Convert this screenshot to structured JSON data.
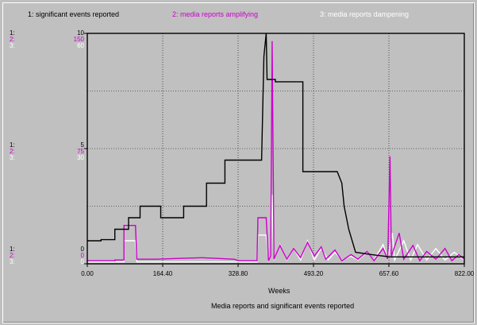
{
  "chart_data": {
    "type": "line",
    "title": "Media reports and significant events reported",
    "xlabel": "Weeks",
    "xlim": [
      0,
      822
    ],
    "x_ticks": [
      "0.00",
      "164.40",
      "328.80",
      "493.20",
      "657.60",
      "822.00"
    ],
    "grid": true,
    "legend_position": "top",
    "series": [
      {
        "name": "1: significant events reported",
        "legend": "1: significant events reported",
        "color": "#000000",
        "axis_prefix": "1:",
        "scale_top": "10",
        "scale_mid": "5",
        "scale_bottom": "0",
        "ylim": [
          0,
          10
        ],
        "points": [
          [
            0,
            1
          ],
          [
            30,
            1
          ],
          [
            30,
            1.05
          ],
          [
            60,
            1.05
          ],
          [
            60,
            1.5
          ],
          [
            90,
            1.5
          ],
          [
            90,
            2
          ],
          [
            115,
            2
          ],
          [
            115,
            2.5
          ],
          [
            160,
            2.5
          ],
          [
            160,
            2
          ],
          [
            210,
            2
          ],
          [
            210,
            2.5
          ],
          [
            260,
            2.5
          ],
          [
            260,
            3.5
          ],
          [
            300,
            3.5
          ],
          [
            300,
            4.5
          ],
          [
            380,
            4.5
          ],
          [
            385,
            9
          ],
          [
            390,
            10
          ],
          [
            392,
            8
          ],
          [
            410,
            8
          ],
          [
            410,
            7.9
          ],
          [
            470,
            7.9
          ],
          [
            470,
            4
          ],
          [
            545,
            4
          ],
          [
            555,
            3.5
          ],
          [
            560,
            2.5
          ],
          [
            570,
            1.5
          ],
          [
            585,
            0.5
          ],
          [
            620,
            0.4
          ],
          [
            660,
            0.3
          ],
          [
            690,
            0.3
          ],
          [
            760,
            0.3
          ],
          [
            822,
            0.3
          ]
        ]
      },
      {
        "name": "2: media reports amplifying",
        "legend": "2: media reports amplifying",
        "color": "#cc00cc",
        "axis_prefix": "2:",
        "scale_top": "150",
        "scale_mid": "75",
        "scale_bottom": "0",
        "ylim": [
          0,
          150
        ],
        "points": [
          [
            0,
            2
          ],
          [
            60,
            2
          ],
          [
            60,
            2.5
          ],
          [
            80,
            2.5
          ],
          [
            80,
            25
          ],
          [
            105,
            25
          ],
          [
            108,
            3
          ],
          [
            150,
            3
          ],
          [
            200,
            3.5
          ],
          [
            250,
            4
          ],
          [
            320,
            3
          ],
          [
            330,
            2
          ],
          [
            350,
            2
          ],
          [
            370,
            2
          ],
          [
            372,
            30
          ],
          [
            390,
            30
          ],
          [
            395,
            2
          ],
          [
            400,
            5
          ],
          [
            403,
            145
          ],
          [
            407,
            3
          ],
          [
            420,
            12
          ],
          [
            435,
            3
          ],
          [
            450,
            10
          ],
          [
            465,
            4
          ],
          [
            480,
            14
          ],
          [
            495,
            5
          ],
          [
            510,
            11
          ],
          [
            520,
            3
          ],
          [
            540,
            9
          ],
          [
            555,
            2
          ],
          [
            575,
            6
          ],
          [
            590,
            3
          ],
          [
            610,
            8
          ],
          [
            625,
            2
          ],
          [
            645,
            10
          ],
          [
            655,
            3
          ],
          [
            660,
            70
          ],
          [
            663,
            5
          ],
          [
            680,
            20
          ],
          [
            690,
            3
          ],
          [
            710,
            12
          ],
          [
            725,
            2
          ],
          [
            740,
            8
          ],
          [
            760,
            3
          ],
          [
            780,
            10
          ],
          [
            795,
            2
          ],
          [
            810,
            6
          ],
          [
            822,
            3
          ]
        ]
      },
      {
        "name": "3: media reports dampening",
        "legend": "3: media reports dampening",
        "color": "#ffffff",
        "axis_prefix": "3:",
        "scale_top": "60",
        "scale_mid": "30",
        "scale_bottom": "0",
        "ylim": [
          0,
          60
        ],
        "points": [
          [
            0,
            0.5
          ],
          [
            80,
            0.5
          ],
          [
            80,
            6
          ],
          [
            105,
            6
          ],
          [
            108,
            0.5
          ],
          [
            200,
            0.5
          ],
          [
            300,
            0.5
          ],
          [
            370,
            0.5
          ],
          [
            372,
            7.5
          ],
          [
            390,
            7.5
          ],
          [
            395,
            1
          ],
          [
            400,
            2
          ],
          [
            403,
            18
          ],
          [
            407,
            1
          ],
          [
            420,
            5
          ],
          [
            435,
            1
          ],
          [
            450,
            4
          ],
          [
            465,
            1
          ],
          [
            480,
            6
          ],
          [
            495,
            1
          ],
          [
            510,
            4
          ],
          [
            525,
            1
          ],
          [
            540,
            3
          ],
          [
            555,
            1
          ],
          [
            575,
            2
          ],
          [
            590,
            1
          ],
          [
            610,
            3
          ],
          [
            625,
            1
          ],
          [
            645,
            5
          ],
          [
            655,
            1
          ],
          [
            665,
            8
          ],
          [
            670,
            1
          ],
          [
            690,
            6
          ],
          [
            705,
            1
          ],
          [
            720,
            5
          ],
          [
            740,
            1
          ],
          [
            760,
            4
          ],
          [
            780,
            1
          ],
          [
            800,
            3
          ],
          [
            822,
            1
          ]
        ]
      }
    ]
  }
}
